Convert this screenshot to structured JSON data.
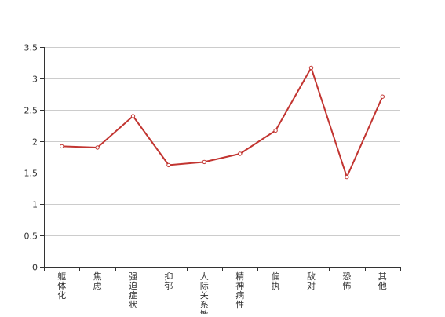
{
  "chart_data": {
    "type": "line",
    "categories": [
      "躯体化",
      "焦虑",
      "强迫症状",
      "抑郁",
      "人际关系敏感",
      "精神病性",
      "偏执",
      "敌对",
      "恐怖",
      "其他"
    ],
    "series": [
      {
        "values": [
          1.92,
          1.9,
          2.4,
          1.62,
          1.67,
          1.8,
          2.17,
          3.17,
          1.43,
          2.71
        ]
      }
    ],
    "y_ticks": [
      "0",
      "0.5",
      "1",
      "1.5",
      "2",
      "2.5",
      "3",
      "3.5"
    ],
    "ylim": [
      0,
      3.5
    ],
    "grid": true,
    "legend": "none",
    "colors": {
      "line": "#c23531",
      "grid": "#cccccc",
      "axis": "#333333",
      "marker_fill": "#ffffff"
    }
  }
}
